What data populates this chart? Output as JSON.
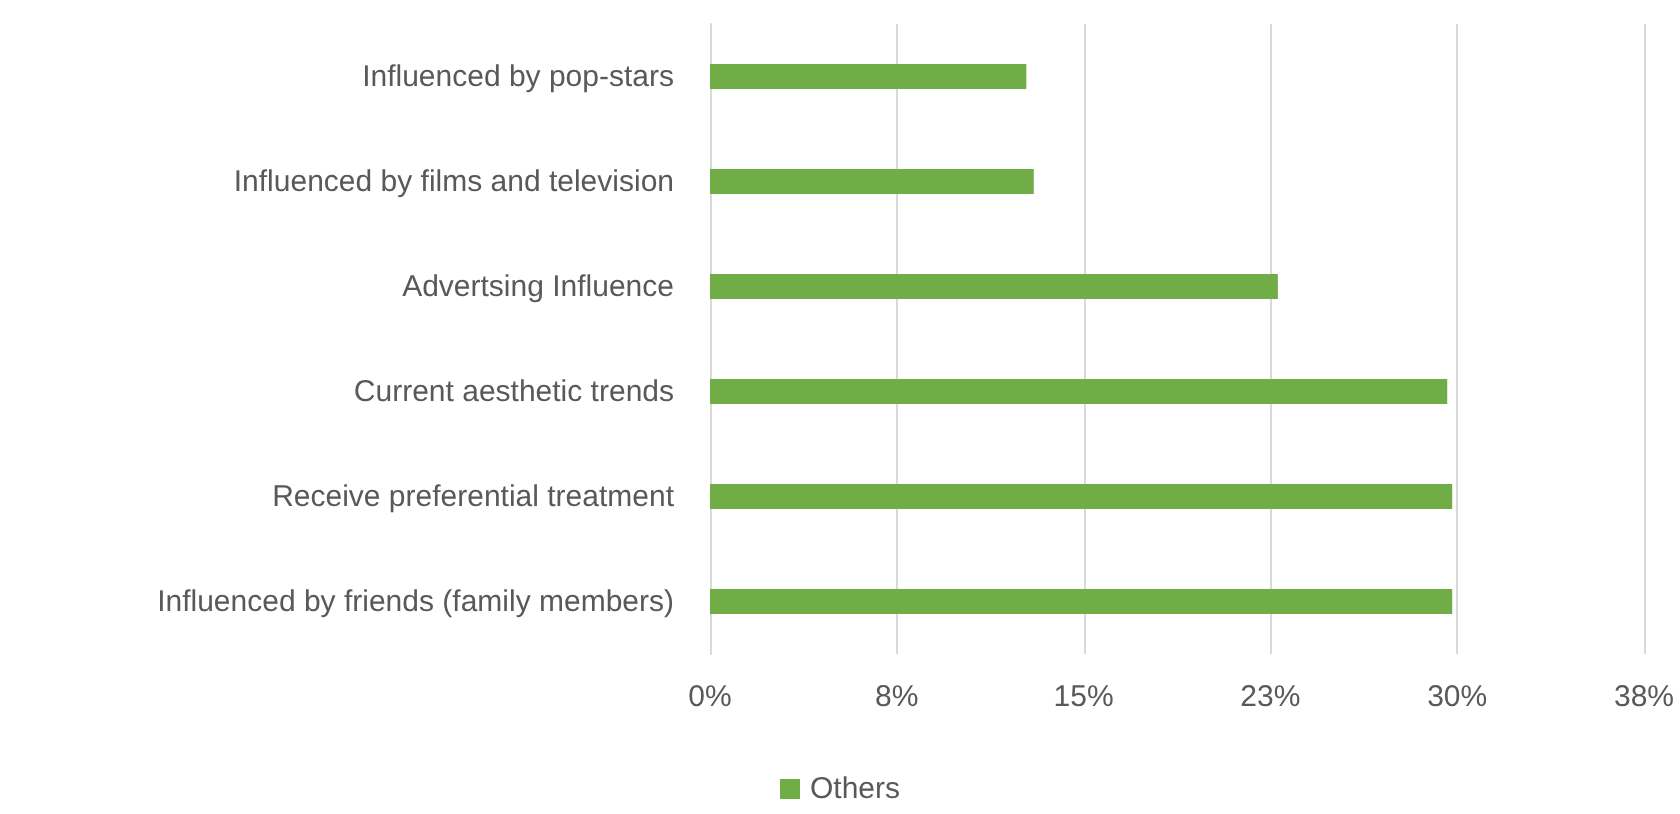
{
  "chart_data": {
    "type": "bar",
    "orientation": "horizontal",
    "categories": [
      "Influenced by pop-stars",
      "Influenced by films and television",
      "Advertsing Influence",
      "Current aesthetic trends",
      "Receive preferential treatment",
      "Influenced by friends (family members)"
    ],
    "series": [
      {
        "name": "Others",
        "color": "#70ad47",
        "values": [
          12.7,
          13.0,
          22.8,
          29.6,
          29.8,
          29.8
        ]
      }
    ],
    "xlim": [
      0,
      37.5
    ],
    "xticks": [
      {
        "value": 0,
        "label": "0%"
      },
      {
        "value": 7.5,
        "label": "8%"
      },
      {
        "value": 15,
        "label": "15%"
      },
      {
        "value": 22.5,
        "label": "23%"
      },
      {
        "value": 30,
        "label": "30%"
      },
      {
        "value": 37.5,
        "label": "38%"
      }
    ],
    "grid": "x",
    "legend": "bottom"
  }
}
